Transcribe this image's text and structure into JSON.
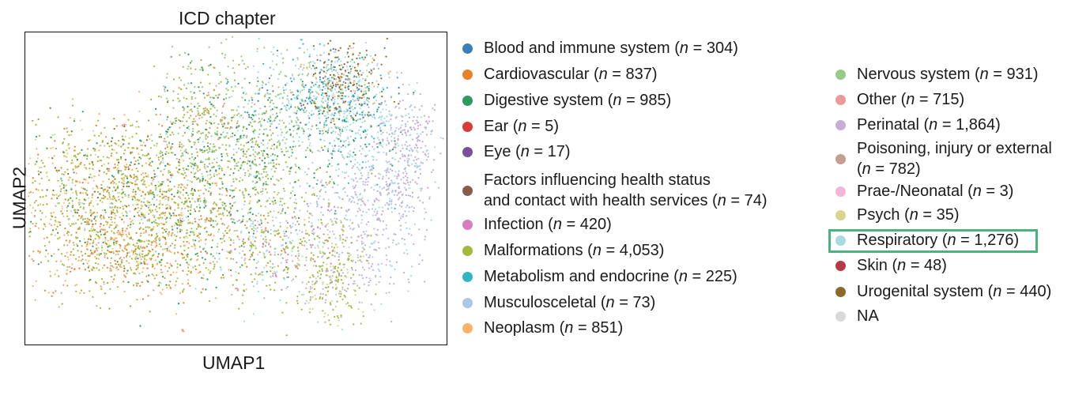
{
  "chart_data": {
    "type": "scatter",
    "title": "ICD chapter",
    "xlabel": "UMAP1",
    "ylabel": "UMAP2",
    "grid": false,
    "ticks": false,
    "legend_position": "right",
    "highlighted_category": "Respiratory",
    "categories": [
      {
        "name": "Blood and immune system",
        "n": "304",
        "color": "#3b7fb6"
      },
      {
        "name": "Cardiovascular",
        "n": "837",
        "color": "#e8822a"
      },
      {
        "name": "Digestive system",
        "n": "985",
        "color": "#2e9a5e"
      },
      {
        "name": "Ear",
        "n": "5",
        "color": "#d93b3b"
      },
      {
        "name": "Eye",
        "n": "17",
        "color": "#7a4f9e"
      },
      {
        "name": "Factors influencing health status",
        "name2": "and contact with health services",
        "n": "74",
        "color": "#8a5a4b"
      },
      {
        "name": "Infection",
        "n": "420",
        "color": "#d87dbd"
      },
      {
        "name": "Malformations",
        "n": "4,053",
        "color": "#a3b93d"
      },
      {
        "name": "Metabolism and endocrine",
        "n": "225",
        "color": "#2fb5c4"
      },
      {
        "name": "Musculosceletal",
        "n": "73",
        "color": "#aec7e8"
      },
      {
        "name": "Neoplasm",
        "n": "851",
        "color": "#f7b469"
      },
      {
        "name": "Nervous system",
        "n": "931",
        "color": "#98cb86"
      },
      {
        "name": "Other",
        "n": "715",
        "color": "#ec9a99"
      },
      {
        "name": "Perinatal",
        "n": "1,864",
        "color": "#c2aed6"
      },
      {
        "name": "Poisoning, injury or external",
        "n": "782",
        "color": "#c49e8f",
        "wrap": true
      },
      {
        "name": "Prae-/Neonatal",
        "n": "3",
        "color": "#f2b7d4"
      },
      {
        "name": "Psych",
        "n": "35",
        "color": "#d8d58d"
      },
      {
        "name": "Respiratory",
        "n": "1,276",
        "color": "#a8dae5"
      },
      {
        "name": "Skin",
        "n": "48",
        "color": "#b33b45"
      },
      {
        "name": "Urogenital system",
        "n": "440",
        "color": "#8b6a2b"
      },
      {
        "name": "NA",
        "n": "",
        "color": "#d9d9d9"
      }
    ]
  }
}
